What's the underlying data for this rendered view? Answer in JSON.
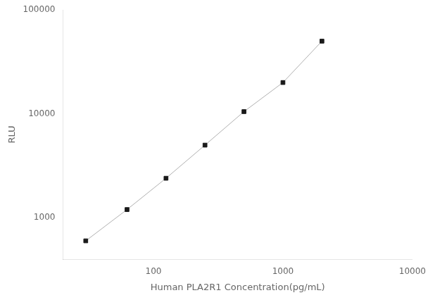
{
  "chart_data": {
    "type": "line",
    "x": [
      30,
      62.5,
      125,
      250,
      500,
      1000,
      2000
    ],
    "values": [
      600,
      1200,
      2400,
      5000,
      10500,
      20000,
      50000
    ],
    "xlabel": "Human PLA2R1 Concentration(pg/mL)",
    "ylabel": "RLU",
    "xlim": [
      20,
      10000
    ],
    "ylim": [
      400,
      100000
    ],
    "xticks": [
      100,
      1000,
      10000
    ],
    "yticks": [
      1000,
      10000,
      100000
    ],
    "log": true,
    "grid": false,
    "color": "#b0b0b0",
    "colors": [
      "#1a1a1a",
      "#1a1a1a",
      "#1a1a1a",
      "#1a1a1a",
      "#1a1a1a",
      "#1a1a1a",
      "#1a1a1a"
    ],
    "marker": "square"
  }
}
